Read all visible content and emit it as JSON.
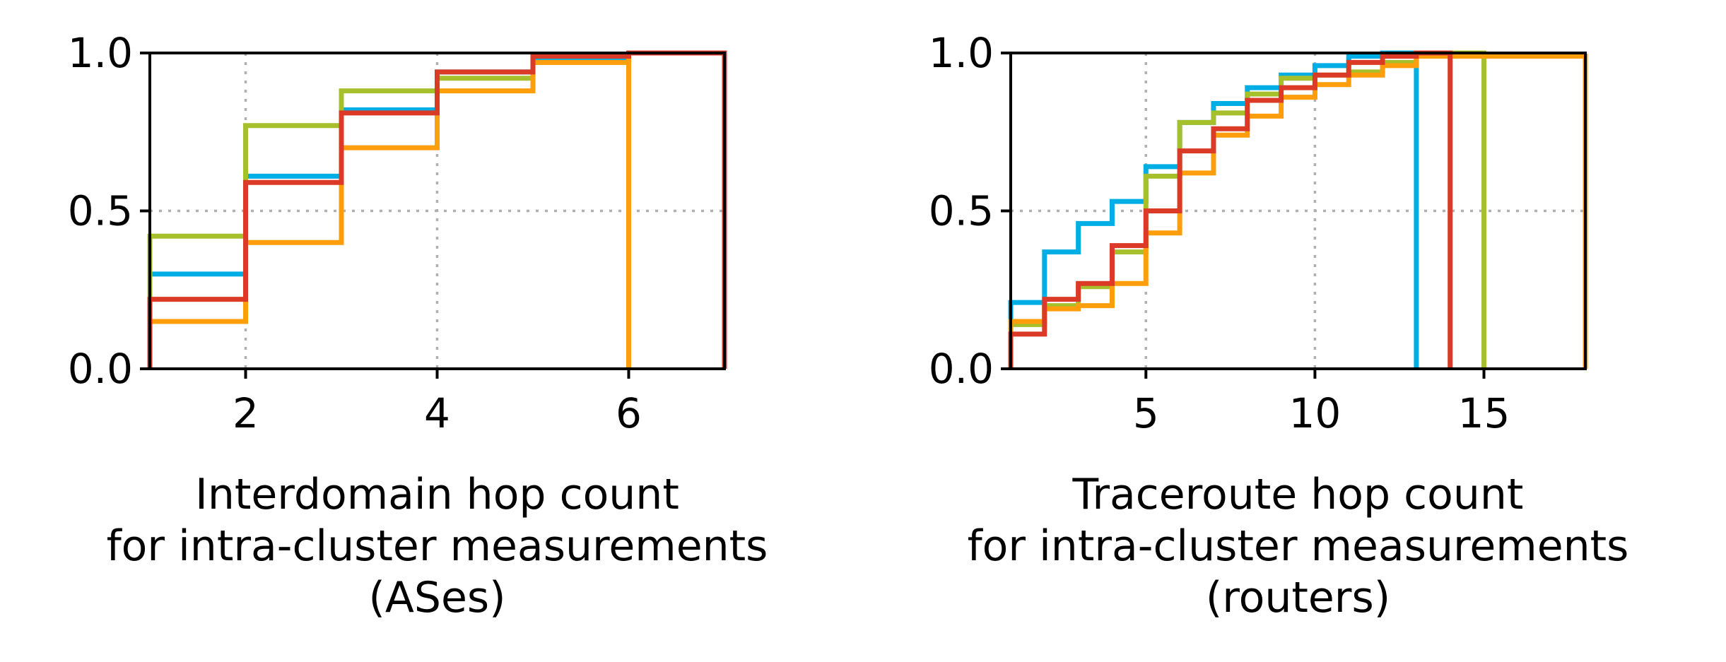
{
  "chart_data": [
    {
      "type": "line",
      "step": true,
      "xlabel": [
        "Interdomain hop count",
        "for intra-cluster measurements",
        "(ASes)"
      ],
      "ylabel": "",
      "title": "",
      "xlim": [
        1,
        7
      ],
      "ylim": [
        0,
        1
      ],
      "xticks": [
        2,
        4,
        6
      ],
      "xtick_labels": [
        "2",
        "4",
        "6"
      ],
      "yticks": [
        0,
        0.5,
        1
      ],
      "ytick_labels": [
        "0.0",
        "0.5",
        "1.0"
      ],
      "grid": true,
      "series": [
        {
          "color": "#00aee6",
          "x": [
            1,
            2,
            3,
            4,
            5,
            6
          ],
          "y": [
            0.3,
            0.61,
            0.82,
            0.94,
            0.98,
            1.0
          ],
          "end_x": 7
        },
        {
          "color": "#a6c02c",
          "x": [
            1,
            2,
            3,
            4,
            5,
            6
          ],
          "y": [
            0.42,
            0.77,
            0.88,
            0.92,
            0.97,
            1.0
          ],
          "end_x": 6
        },
        {
          "color": "#ff9e0c",
          "x": [
            1,
            2,
            3,
            4,
            5,
            6
          ],
          "y": [
            0.15,
            0.4,
            0.7,
            0.88,
            0.97,
            1.0
          ],
          "end_x": 6
        },
        {
          "color": "#da3a26",
          "x": [
            1,
            2,
            3,
            4,
            5,
            6
          ],
          "y": [
            0.22,
            0.59,
            0.81,
            0.94,
            0.99,
            1.0
          ],
          "end_x": 7
        }
      ]
    },
    {
      "type": "line",
      "step": true,
      "xlabel": [
        "Traceroute hop count",
        "for intra-cluster measurements",
        "(routers)"
      ],
      "ylabel": "",
      "title": "",
      "xlim": [
        1,
        18
      ],
      "ylim": [
        0,
        1
      ],
      "xticks": [
        5,
        10,
        15
      ],
      "xtick_labels": [
        "5",
        "10",
        "15"
      ],
      "yticks": [
        0,
        0.5,
        1
      ],
      "ytick_labels": [
        "0.0",
        "0.5",
        "1.0"
      ],
      "grid": true,
      "series": [
        {
          "color": "#00aee6",
          "x": [
            1,
            2,
            3,
            4,
            5,
            6,
            7,
            8,
            9,
            10,
            11,
            12
          ],
          "y": [
            0.21,
            0.37,
            0.46,
            0.53,
            0.64,
            0.78,
            0.84,
            0.89,
            0.93,
            0.96,
            0.99,
            1.0
          ],
          "end_x": 13
        },
        {
          "color": "#a6c02c",
          "x": [
            1,
            2,
            3,
            4,
            5,
            6,
            7,
            8,
            9,
            10,
            11,
            12,
            13
          ],
          "y": [
            0.14,
            0.2,
            0.26,
            0.37,
            0.61,
            0.78,
            0.81,
            0.87,
            0.92,
            0.93,
            0.94,
            0.97,
            1.0
          ],
          "end_x": 15
        },
        {
          "color": "#ff9e0c",
          "x": [
            1,
            2,
            3,
            4,
            5,
            6,
            7,
            8,
            9,
            10,
            11,
            12,
            13
          ],
          "y": [
            0.15,
            0.19,
            0.2,
            0.27,
            0.43,
            0.62,
            0.74,
            0.8,
            0.86,
            0.9,
            0.93,
            0.96,
            0.99
          ],
          "end_x": 18
        },
        {
          "color": "#da3a26",
          "x": [
            1,
            2,
            3,
            4,
            5,
            6,
            7,
            8,
            9,
            10,
            11,
            12,
            13
          ],
          "y": [
            0.11,
            0.22,
            0.27,
            0.39,
            0.5,
            0.69,
            0.76,
            0.85,
            0.89,
            0.93,
            0.97,
            0.99,
            1.0
          ],
          "end_x": 14
        }
      ]
    }
  ]
}
